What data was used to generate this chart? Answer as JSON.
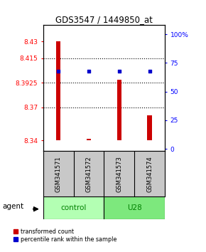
{
  "title": "GDS3547 / 1449850_at",
  "samples": [
    "GSM341571",
    "GSM341572",
    "GSM341573",
    "GSM341574"
  ],
  "groups": [
    "control",
    "control",
    "U28",
    "U28"
  ],
  "bar_values": [
    8.43,
    8.341,
    8.395,
    8.363
  ],
  "bar_base": 8.34,
  "perc_vals": [
    68,
    68,
    68,
    68
  ],
  "ylim_left": [
    8.33,
    8.445
  ],
  "ylim_right": [
    -2,
    108
  ],
  "yticks_left": [
    8.34,
    8.37,
    8.3925,
    8.415,
    8.43
  ],
  "yticks_left_labels": [
    "8.34",
    "8.37",
    "8.3925",
    "8.415",
    "8.43"
  ],
  "yticks_right": [
    0,
    25,
    50,
    75,
    100
  ],
  "yticks_right_labels": [
    "0",
    "25",
    "50",
    "75",
    "100%"
  ],
  "grid_yticks": [
    8.415,
    8.3925,
    8.37
  ],
  "bar_color": "#CC0000",
  "percentile_color": "#0000CC",
  "bar_width": 0.15,
  "control_color": "#b3ffb3",
  "u28_color": "#7de87d",
  "label_bg": "#c8c8c8",
  "legend_items": [
    "transformed count",
    "percentile rank within the sample"
  ]
}
